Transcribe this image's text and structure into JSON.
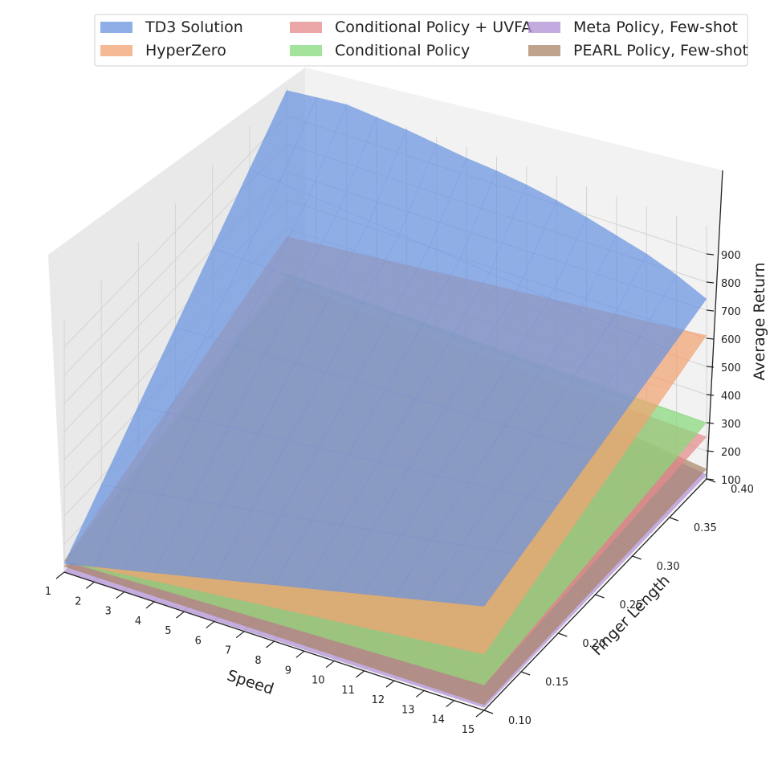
{
  "chart_data": {
    "type": "surface3d",
    "x": {
      "label": "Speed",
      "ticks": [
        1,
        2,
        3,
        4,
        5,
        6,
        7,
        8,
        9,
        10,
        11,
        12,
        13,
        14,
        15
      ]
    },
    "y": {
      "label": "Finger Length",
      "ticks": [
        "0.10",
        "0.15",
        "0.20",
        "0.25",
        "0.30",
        "0.35",
        "0.40"
      ]
    },
    "z": {
      "label": "Average Return",
      "ticks": [
        100,
        200,
        300,
        400,
        500,
        600,
        700,
        800,
        900
      ]
    },
    "legend_position": "top",
    "series": [
      {
        "name": "TD3 Solution",
        "color": "#6a93e0",
        "corners": {
          "speed1_len010": 130,
          "speed15_len010": 470,
          "speed1_len040": 990,
          "speed15_len040": 740
        },
        "edge_len040": [
          990,
          1000,
          1010,
          1000,
          990,
          975,
          960,
          950,
          935,
          915,
          890,
          860,
          830,
          790,
          740
        ]
      },
      {
        "name": "HyperZero",
        "color": "#f1a273",
        "corners": {
          "speed1_len010": 140,
          "speed15_len010": 300,
          "speed1_len040": 470,
          "speed15_len040": 610
        }
      },
      {
        "name": "Conditional Policy + UVFA",
        "color": "#e48a8a",
        "corners": {
          "speed1_len010": 140,
          "speed15_len010": 190,
          "speed1_len040": 290,
          "speed15_len040": 250
        }
      },
      {
        "name": "Conditional Policy",
        "color": "#86d97a",
        "corners": {
          "speed1_len010": 140,
          "speed15_len010": 190,
          "speed1_len040": 340,
          "speed15_len040": 300
        }
      },
      {
        "name": "Meta Policy, Few-shot",
        "color": "#b08fd4",
        "corners": {
          "speed1_len010": 100,
          "speed15_len010": 110,
          "speed1_len040": 310,
          "speed15_len040": 115
        }
      },
      {
        "name": "PEARL Policy, Few-shot",
        "color": "#a98467",
        "corners": {
          "speed1_len010": 120,
          "speed15_len010": 120,
          "speed1_len040": 320,
          "speed15_len040": 135
        }
      }
    ]
  }
}
